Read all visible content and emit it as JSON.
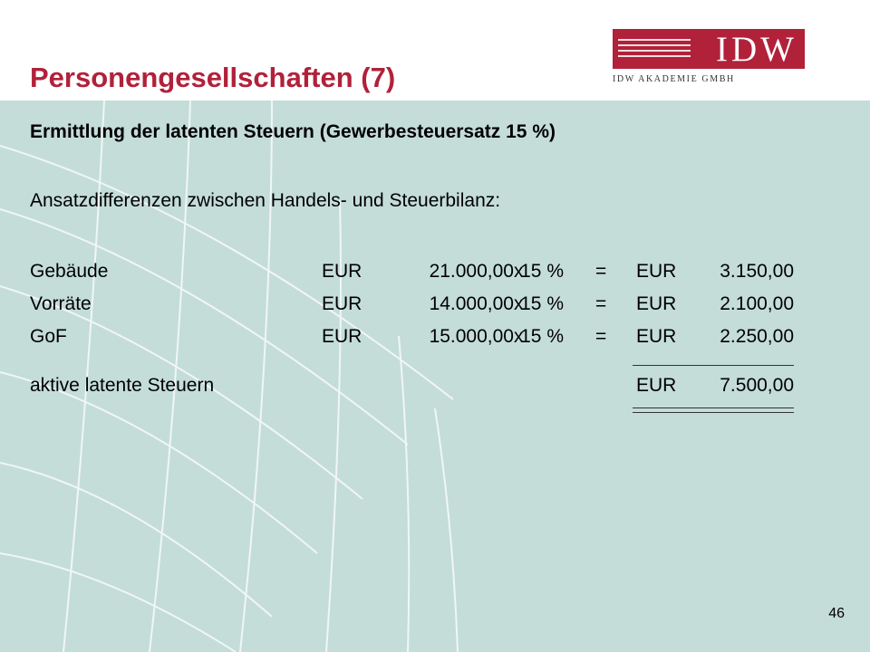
{
  "slide": {
    "title": "Personengesellschaften (7)",
    "subheading": "Ermittlung der latenten Steuern (Gewerbesteuersatz 15 %)",
    "intro": "Ansatzdifferenzen zwischen Handels- und Steuerbilanz:",
    "page_number": "46"
  },
  "logo": {
    "main": "IDW",
    "sub": "IDW AKADEMIE GMBH"
  },
  "colors": {
    "accent": "#b1213a",
    "content_background": "#c4ddd9"
  },
  "table": {
    "rows": [
      {
        "label": "Gebäude",
        "currency": "EUR",
        "amount": "21.000,00",
        "times": "x",
        "rate": "15 %",
        "equals": "=",
        "result_currency": "EUR",
        "result": "3.150,00"
      },
      {
        "label": "Vorräte",
        "currency": "EUR",
        "amount": "14.000,00",
        "times": "x",
        "rate": "15 %",
        "equals": "=",
        "result_currency": "EUR",
        "result": "2.100,00"
      },
      {
        "label": "GoF",
        "currency": "EUR",
        "amount": "15.000,00",
        "times": "x",
        "rate": "15 %",
        "equals": "=",
        "result_currency": "EUR",
        "result": "2.250,00"
      }
    ],
    "total": {
      "label": "aktive latente Steuern",
      "currency": "EUR",
      "value": "7.500,00"
    }
  }
}
